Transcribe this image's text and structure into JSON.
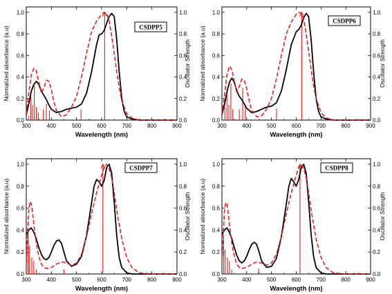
{
  "chart_data": [
    {
      "type": "line",
      "label": "CSDPP5",
      "xlabel": "Wavelength (nm)",
      "ylabel": "Normalized absorbance (a.u)",
      "y2label": "Oscillator Strength",
      "xlim": [
        300,
        900
      ],
      "ylim": [
        0,
        1.05
      ],
      "xticks": [
        "300",
        "400",
        "500",
        "600",
        "700",
        "800",
        "900"
      ],
      "yticks": [
        "0.0",
        "0.2",
        "0.4",
        "0.6",
        "0.8",
        "1.0"
      ],
      "series": [
        {
          "style": "solid-black",
          "x": [
            300,
            310,
            320,
            330,
            340,
            350,
            360,
            370,
            380,
            390,
            400,
            420,
            440,
            460,
            480,
            500,
            520,
            540,
            560,
            580,
            590,
            600,
            610,
            620,
            630,
            640,
            650,
            660,
            670,
            680,
            690,
            700,
            720,
            750,
            800,
            850,
            900
          ],
          "y": [
            0.05,
            0.15,
            0.27,
            0.33,
            0.36,
            0.33,
            0.27,
            0.23,
            0.19,
            0.14,
            0.1,
            0.07,
            0.08,
            0.1,
            0.11,
            0.12,
            0.15,
            0.25,
            0.45,
            0.7,
            0.79,
            0.8,
            0.83,
            0.9,
            0.96,
            0.99,
            0.96,
            0.75,
            0.45,
            0.2,
            0.08,
            0.03,
            0.01,
            0.0,
            0.0,
            0.0,
            0.0
          ]
        },
        {
          "style": "dashed-red",
          "x": [
            300,
            310,
            320,
            330,
            340,
            350,
            360,
            370,
            380,
            390,
            400,
            410,
            420,
            440,
            460,
            480,
            500,
            520,
            540,
            560,
            580,
            600,
            610,
            620,
            630,
            640,
            650,
            660,
            670,
            680,
            700,
            720,
            750,
            800,
            900
          ],
          "y": [
            0.05,
            0.25,
            0.42,
            0.48,
            0.46,
            0.35,
            0.25,
            0.3,
            0.37,
            0.36,
            0.28,
            0.17,
            0.09,
            0.03,
            0.05,
            0.12,
            0.22,
            0.4,
            0.62,
            0.82,
            0.92,
            0.98,
            1.0,
            0.99,
            0.92,
            0.78,
            0.62,
            0.45,
            0.3,
            0.18,
            0.06,
            0.02,
            0.0,
            0.0,
            0.0
          ]
        }
      ],
      "sticks": {
        "x": [
          310,
          318,
          325,
          332,
          340,
          348,
          368,
          380,
          392,
          518,
          612
        ],
        "y": [
          0.04,
          0.22,
          0.14,
          0.32,
          0.12,
          0.07,
          0.1,
          0.15,
          0.09,
          0.1,
          1.0
        ]
      }
    },
    {
      "type": "line",
      "label": "CSDPP6",
      "xlabel": "Wavelength (nm)",
      "ylabel": "Normalized absorbance (a.u)",
      "y2label": "Oscillator Strength",
      "xlim": [
        300,
        900
      ],
      "ylim": [
        0,
        1.05
      ],
      "xticks": [
        "300",
        "400",
        "500",
        "600",
        "700",
        "800",
        "900"
      ],
      "yticks": [
        "0.0",
        "0.2",
        "0.4",
        "0.6",
        "0.8",
        "1.0"
      ],
      "series": [
        {
          "style": "solid-black",
          "x": [
            300,
            310,
            320,
            330,
            340,
            350,
            360,
            370,
            380,
            390,
            400,
            420,
            440,
            460,
            480,
            500,
            520,
            540,
            560,
            580,
            600,
            610,
            620,
            630,
            640,
            650,
            660,
            670,
            680,
            690,
            700,
            720,
            750,
            800,
            850,
            900
          ],
          "y": [
            0.05,
            0.14,
            0.26,
            0.35,
            0.39,
            0.35,
            0.27,
            0.22,
            0.19,
            0.15,
            0.11,
            0.07,
            0.08,
            0.1,
            0.12,
            0.13,
            0.16,
            0.27,
            0.47,
            0.7,
            0.82,
            0.84,
            0.88,
            0.95,
            0.99,
            0.96,
            0.75,
            0.45,
            0.2,
            0.08,
            0.03,
            0.01,
            0.0,
            0.0,
            0.0,
            0.0
          ]
        },
        {
          "style": "dashed-red",
          "x": [
            300,
            310,
            320,
            330,
            340,
            350,
            360,
            370,
            380,
            390,
            400,
            410,
            420,
            440,
            460,
            480,
            500,
            520,
            540,
            560,
            580,
            600,
            610,
            620,
            630,
            640,
            650,
            660,
            670,
            680,
            700,
            720,
            750,
            800,
            900
          ],
          "y": [
            0.05,
            0.22,
            0.42,
            0.5,
            0.47,
            0.36,
            0.26,
            0.31,
            0.38,
            0.37,
            0.29,
            0.18,
            0.09,
            0.03,
            0.04,
            0.1,
            0.2,
            0.38,
            0.6,
            0.8,
            0.91,
            0.98,
            1.0,
            0.99,
            0.93,
            0.8,
            0.64,
            0.47,
            0.32,
            0.2,
            0.07,
            0.02,
            0.0,
            0.0,
            0.0
          ]
        }
      ],
      "sticks": {
        "x": [
          312,
          320,
          328,
          336,
          344,
          370,
          384,
          394,
          520,
          622
        ],
        "y": [
          0.12,
          0.24,
          0.14,
          0.34,
          0.1,
          0.1,
          0.3,
          0.13,
          0.11,
          1.0
        ]
      }
    },
    {
      "type": "line",
      "label": "CSDPP7",
      "xlabel": "Wavelength (nm)",
      "ylabel": "Normalized absorbance (a.u)",
      "y2label": "Oscillator Strength",
      "xlim": [
        300,
        900
      ],
      "ylim": [
        0,
        1.05
      ],
      "xticks": [
        "300",
        "400",
        "500",
        "600",
        "700",
        "800",
        "900"
      ],
      "yticks": [
        "0.0",
        "0.2",
        "0.4",
        "0.6",
        "0.8",
        "1.0"
      ],
      "series": [
        {
          "style": "solid-black",
          "x": [
            300,
            310,
            320,
            330,
            340,
            350,
            360,
            370,
            380,
            390,
            400,
            410,
            420,
            430,
            440,
            450,
            460,
            480,
            500,
            520,
            540,
            560,
            570,
            580,
            590,
            600,
            610,
            620,
            630,
            640,
            650,
            660,
            670,
            680,
            700,
            720,
            750,
            800,
            850,
            900
          ],
          "y": [
            0.36,
            0.4,
            0.42,
            0.38,
            0.32,
            0.24,
            0.18,
            0.14,
            0.13,
            0.15,
            0.2,
            0.26,
            0.3,
            0.31,
            0.28,
            0.2,
            0.12,
            0.07,
            0.09,
            0.16,
            0.35,
            0.65,
            0.8,
            0.86,
            0.84,
            0.8,
            0.85,
            0.97,
            1.0,
            0.92,
            0.65,
            0.35,
            0.15,
            0.06,
            0.01,
            0.0,
            0.0,
            0.0,
            0.0,
            0.0
          ]
        },
        {
          "style": "dashed-red",
          "x": [
            300,
            305,
            310,
            315,
            320,
            325,
            330,
            340,
            350,
            360,
            370,
            380,
            400,
            420,
            440,
            460,
            480,
            500,
            520,
            540,
            560,
            580,
            600,
            610,
            620,
            630,
            640,
            650,
            660,
            680,
            700,
            720,
            750,
            800,
            900
          ],
          "y": [
            0.1,
            0.35,
            0.58,
            0.66,
            0.64,
            0.56,
            0.45,
            0.28,
            0.16,
            0.09,
            0.06,
            0.05,
            0.06,
            0.09,
            0.11,
            0.1,
            0.08,
            0.1,
            0.18,
            0.34,
            0.55,
            0.74,
            0.9,
            0.97,
            1.0,
            0.96,
            0.88,
            0.74,
            0.58,
            0.32,
            0.15,
            0.06,
            0.01,
            0.0,
            0.0
          ]
        }
      ],
      "sticks": {
        "x": [
          307,
          313,
          322,
          330,
          340,
          450,
          605
        ],
        "y": [
          0.38,
          0.26,
          0.15,
          0.12,
          0.04,
          0.04,
          1.0
        ]
      }
    },
    {
      "type": "line",
      "label": "CSDPP8",
      "xlabel": "Wavelength (nm)",
      "ylabel": "Normalized absorbance (a.u)",
      "y2label": "Oscillator Strength",
      "xlim": [
        300,
        900
      ],
      "ylim": [
        0,
        1.05
      ],
      "xticks": [
        "300",
        "400",
        "500",
        "600",
        "700",
        "800",
        "900"
      ],
      "yticks": [
        "0.0",
        "0.2",
        "0.4",
        "0.6",
        "0.8",
        "1.0"
      ],
      "series": [
        {
          "style": "solid-black",
          "x": [
            300,
            310,
            320,
            330,
            340,
            350,
            360,
            370,
            380,
            390,
            400,
            410,
            420,
            430,
            440,
            450,
            460,
            480,
            500,
            520,
            540,
            560,
            570,
            580,
            590,
            600,
            610,
            620,
            630,
            640,
            650,
            660,
            670,
            680,
            700,
            720,
            750,
            800,
            850,
            900
          ],
          "y": [
            0.36,
            0.4,
            0.42,
            0.38,
            0.32,
            0.24,
            0.17,
            0.12,
            0.1,
            0.12,
            0.16,
            0.22,
            0.27,
            0.29,
            0.27,
            0.2,
            0.12,
            0.06,
            0.07,
            0.14,
            0.34,
            0.64,
            0.8,
            0.87,
            0.84,
            0.8,
            0.86,
            0.97,
            1.0,
            0.92,
            0.66,
            0.36,
            0.16,
            0.06,
            0.01,
            0.0,
            0.0,
            0.0,
            0.0,
            0.0
          ]
        },
        {
          "style": "dashed-red",
          "x": [
            300,
            305,
            310,
            315,
            320,
            325,
            330,
            340,
            350,
            360,
            370,
            380,
            400,
            420,
            440,
            460,
            480,
            500,
            520,
            540,
            560,
            580,
            600,
            610,
            620,
            630,
            640,
            650,
            660,
            680,
            700,
            720,
            750,
            800,
            900
          ],
          "y": [
            0.1,
            0.35,
            0.57,
            0.65,
            0.64,
            0.56,
            0.45,
            0.28,
            0.16,
            0.09,
            0.06,
            0.05,
            0.06,
            0.09,
            0.11,
            0.1,
            0.08,
            0.1,
            0.18,
            0.34,
            0.55,
            0.74,
            0.9,
            0.97,
            1.0,
            0.96,
            0.88,
            0.74,
            0.58,
            0.32,
            0.15,
            0.06,
            0.01,
            0.0,
            0.0
          ]
        }
      ],
      "sticks": {
        "x": [
          307,
          313,
          322,
          330,
          340,
          448,
          615
        ],
        "y": [
          0.33,
          0.22,
          0.15,
          0.12,
          0.04,
          0.05,
          1.0
        ]
      }
    }
  ]
}
